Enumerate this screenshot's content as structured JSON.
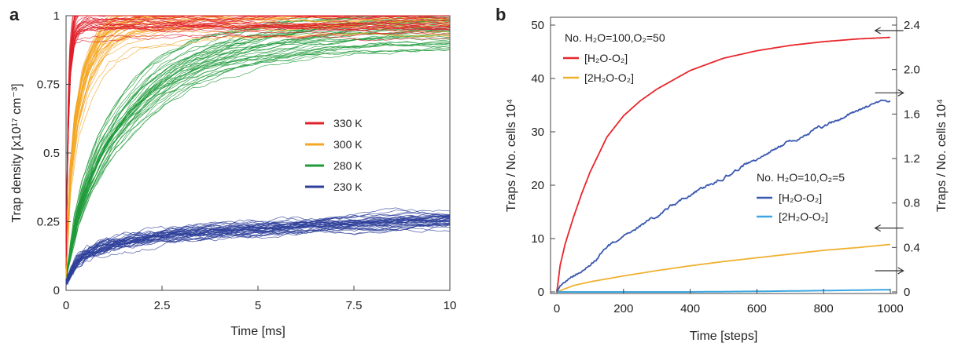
{
  "chart_data": [
    {
      "panel": "a",
      "type": "line",
      "xlabel": "Time [ms]",
      "ylabel": "Trap density [x10¹⁷ cm⁻³]",
      "xlim": [
        0,
        10
      ],
      "ylim": [
        0,
        1
      ],
      "x_ticks": [
        0,
        2.5,
        5,
        7.5,
        10
      ],
      "x_tick_labels": [
        "0",
        "2.5",
        "5",
        "7.5",
        "10"
      ],
      "y_ticks": [
        0,
        0.25,
        0.5,
        0.75,
        1
      ],
      "y_tick_labels": [
        "0",
        "0.25",
        "0.5",
        "0.75",
        "1"
      ],
      "grid": false,
      "legend_position": "center-right",
      "series": [
        {
          "name": "330 K",
          "color": "#e0202a",
          "x": [
            0,
            0.05,
            0.1,
            0.2,
            0.3,
            0.5,
            1,
            2,
            10
          ],
          "values": [
            0.1,
            0.6,
            0.82,
            0.95,
            0.98,
            0.995,
            1,
            1,
            1
          ]
        },
        {
          "name": "300 K",
          "color": "#f5a623",
          "x": [
            0,
            0.1,
            0.25,
            0.5,
            0.75,
            1,
            1.5,
            2,
            3,
            4,
            5,
            10
          ],
          "values": [
            0.05,
            0.4,
            0.6,
            0.76,
            0.84,
            0.9,
            0.95,
            0.97,
            0.99,
            1,
            1,
            1
          ]
        },
        {
          "name": "280 K",
          "color": "#1f9a3a",
          "x": [
            0,
            0.25,
            0.5,
            1,
            1.5,
            2,
            2.5,
            3,
            4,
            5,
            6,
            7,
            8,
            9,
            10
          ],
          "values": [
            0.05,
            0.25,
            0.37,
            0.53,
            0.63,
            0.71,
            0.77,
            0.81,
            0.87,
            0.9,
            0.92,
            0.935,
            0.945,
            0.955,
            0.96
          ]
        },
        {
          "name": "230 K",
          "color": "#2e3f9a",
          "x": [
            0,
            0.25,
            0.5,
            1,
            1.5,
            2,
            3,
            4,
            5,
            6,
            7,
            8,
            9,
            10
          ],
          "values": [
            0.03,
            0.1,
            0.13,
            0.16,
            0.175,
            0.19,
            0.205,
            0.215,
            0.225,
            0.232,
            0.24,
            0.248,
            0.255,
            0.26
          ]
        }
      ]
    },
    {
      "panel": "b",
      "type": "line",
      "xlabel": "Time [steps]",
      "ylabel": "Traps / No. cells 10⁴",
      "ylabel_right": "Traps / No. cells 10⁴",
      "xlim": [
        0,
        1000
      ],
      "ylim": [
        0,
        50
      ],
      "ylim_right": [
        0,
        2.4
      ],
      "x_ticks": [
        0,
        200,
        400,
        600,
        800,
        1000
      ],
      "x_tick_labels": [
        "0",
        "200",
        "400",
        "600",
        "800",
        "1000"
      ],
      "y_ticks": [
        0,
        10,
        20,
        30,
        40,
        50
      ],
      "y_tick_labels": [
        "0",
        "10",
        "20",
        "30",
        "40",
        "50"
      ],
      "y_ticks_right": [
        0,
        0.4,
        0.8,
        1.2,
        1.6,
        2.0,
        2.4
      ],
      "y_tick_labels_right": [
        "0",
        "0.4",
        "0.8",
        "1.2",
        "1.6",
        "2.0",
        "2.4"
      ],
      "grid": false,
      "legend_groups": [
        {
          "title": "No. H₂O=100,O₂=50",
          "position": "top-left",
          "entries": [
            "[H₂O-O₂]",
            "[2H₂O-O₂]"
          ]
        },
        {
          "title": "No. H₂O=10,O₂=5",
          "position": "center-right",
          "entries": [
            "[H₂O-O₂]",
            "[2H₂O-O₂]"
          ]
        }
      ],
      "series": [
        {
          "name": "[H₂O-O₂]",
          "group": "No. H₂O=100,O₂=50",
          "axis": "left",
          "color": "#e8262b",
          "x": [
            0,
            10,
            25,
            50,
            75,
            100,
            150,
            200,
            250,
            300,
            400,
            500,
            600,
            700,
            800,
            900,
            1000
          ],
          "values": [
            0,
            5,
            9,
            14,
            18.5,
            22.5,
            29,
            33,
            35.8,
            38,
            41.5,
            43.8,
            45.2,
            46.2,
            46.9,
            47.4,
            47.7
          ]
        },
        {
          "name": "[2H₂O-O₂]",
          "group": "No. H₂O=100,O₂=50",
          "axis": "left",
          "color": "#f0b030",
          "x": [
            0,
            50,
            100,
            200,
            300,
            400,
            500,
            600,
            700,
            800,
            900,
            1000
          ],
          "values": [
            0,
            1.2,
            1.9,
            3.0,
            4.0,
            4.9,
            5.7,
            6.4,
            7.1,
            7.8,
            8.3,
            8.9
          ]
        },
        {
          "name": "[H₂O-O₂]",
          "group": "No. H₂O=10,O₂=5",
          "axis": "right",
          "color": "#3a58b0",
          "x": [
            0,
            25,
            50,
            100,
            150,
            200,
            250,
            300,
            400,
            500,
            600,
            700,
            800,
            900,
            1000
          ],
          "values": [
            0,
            0.08,
            0.14,
            0.25,
            0.38,
            0.5,
            0.58,
            0.68,
            0.88,
            1.03,
            1.2,
            1.35,
            1.49,
            1.63,
            1.73
          ]
        },
        {
          "name": "[2H₂O-O₂]",
          "group": "No. H₂O=10,O₂=5",
          "axis": "right",
          "color": "#3ba6e0",
          "x": [
            0,
            200,
            400,
            600,
            800,
            1000
          ],
          "values": [
            0,
            0,
            0,
            0.005,
            0.012,
            0.02
          ]
        }
      ],
      "annotations": [
        {
          "type": "arrow",
          "direction": "left",
          "x": 820,
          "y": 47.5,
          "axis": "left"
        },
        {
          "type": "arrow",
          "direction": "right",
          "x": 820,
          "y": 1.72,
          "axis": "right"
        },
        {
          "type": "arrow",
          "direction": "left",
          "x": 820,
          "y": 10.5,
          "axis": "left"
        },
        {
          "type": "arrow",
          "direction": "right",
          "x": 820,
          "y": 0.12,
          "axis": "right"
        }
      ]
    }
  ],
  "labels": {
    "panel_a": "a",
    "panel_b": "b"
  }
}
